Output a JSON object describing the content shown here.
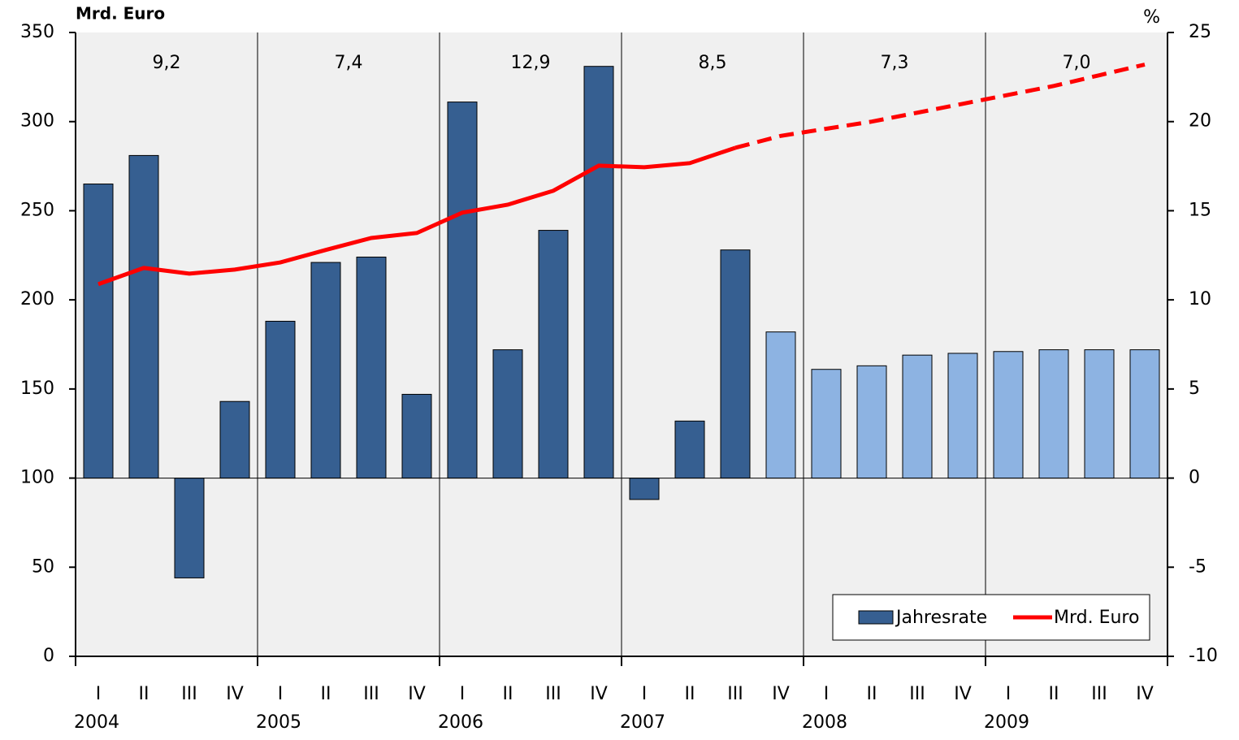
{
  "chart_data": {
    "type": "combo",
    "y_label": "Mrd. Euro",
    "y2_label": "%",
    "categories": [
      "I",
      "II",
      "III",
      "IV",
      "I",
      "II",
      "III",
      "IV",
      "I",
      "II",
      "III",
      "IV",
      "I",
      "II",
      "III",
      "IV",
      "I",
      "II",
      "III",
      "IV",
      "I",
      "II",
      "III",
      "IV"
    ],
    "groups": [
      "2004",
      "2005",
      "2006",
      "2007",
      "2008",
      "2009"
    ],
    "annotations": [
      "9,2",
      "7,4",
      "12,9",
      "8,5",
      "7,3",
      "7,0"
    ],
    "ylim": [
      0,
      350
    ],
    "yticks": [
      0,
      50,
      100,
      150,
      200,
      250,
      300,
      350
    ],
    "y2lim": [
      -10,
      25
    ],
    "y2ticks": [
      -10,
      -5,
      0,
      5,
      10,
      15,
      20,
      25
    ],
    "background": "#f0f0f0",
    "legend": "bottom-right",
    "series": [
      {
        "name": "Jahresrate",
        "type": "bar",
        "axis": "y2",
        "color": "#365f91",
        "colors": [
          "#365f91",
          "#365f91",
          "#365f91",
          "#365f91",
          "#365f91",
          "#365f91",
          "#365f91",
          "#365f91",
          "#365f91",
          "#365f91",
          "#365f91",
          "#365f91",
          "#365f91",
          "#365f91",
          "#365f91",
          "#8db3e2",
          "#8db3e2",
          "#8db3e2",
          "#8db3e2",
          "#8db3e2",
          "#8db3e2",
          "#8db3e2",
          "#8db3e2",
          "#8db3e2"
        ],
        "values": [
          16.5,
          18.1,
          -5.6,
          4.3,
          8.8,
          12.1,
          12.4,
          4.7,
          21.1,
          7.2,
          13.9,
          23.1,
          -1.2,
          3.2,
          12.8,
          8.2,
          6.1,
          6.3,
          6.9,
          7.0,
          7.1,
          7.2,
          7.2,
          7.2
        ]
      },
      {
        "name": "Mrd. Euro",
        "type": "line",
        "axis": "y",
        "color": "#ff0000",
        "dashed": [
          false,
          false,
          false,
          false,
          false,
          false,
          false,
          false,
          false,
          false,
          false,
          false,
          false,
          false,
          false,
          true,
          true,
          true,
          true,
          true,
          true,
          true,
          true,
          true
        ],
        "values": [
          208.8,
          217.9,
          214.7,
          217,
          221,
          228,
          234.7,
          237.5,
          248.9,
          253.4,
          261.2,
          275.3,
          274.4,
          276.7,
          285.3,
          292,
          296,
          300,
          305,
          310,
          315,
          320,
          326,
          332
        ]
      }
    ]
  }
}
